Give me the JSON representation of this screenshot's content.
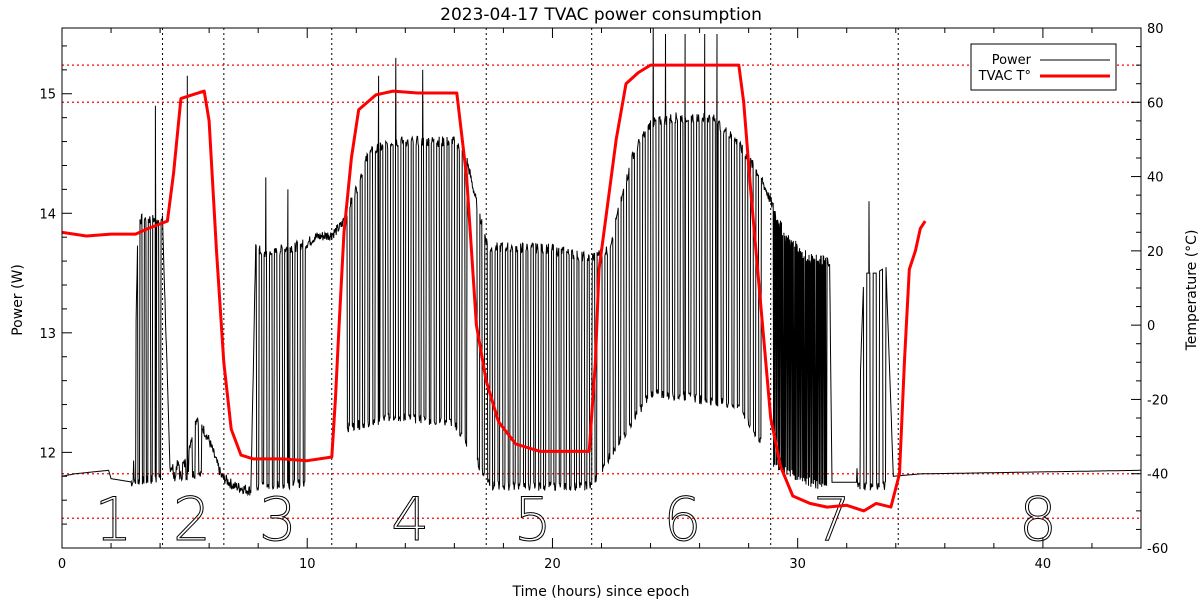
{
  "chart_data": {
    "type": "line",
    "title": "2023-04-17 TVAC power consumption",
    "xlabel": "Time (hours) since epoch",
    "ylabel": "Power (W)",
    "y2label": "Temperature (°C)",
    "xlim": [
      0,
      44
    ],
    "ylim": [
      11.2,
      15.55
    ],
    "y2lim": [
      -60,
      80
    ],
    "x_ticks": [
      0,
      10,
      20,
      30,
      40
    ],
    "y_ticks": [
      12,
      13,
      14,
      15
    ],
    "y2_ticks": [
      -60,
      -40,
      -20,
      0,
      20,
      40,
      60,
      80
    ],
    "legend": {
      "position": "top-right",
      "entries": [
        {
          "label": "Power",
          "color": "#000000"
        },
        {
          "label": "TVAC T°",
          "color": "#ff0000"
        }
      ]
    },
    "phase_boundaries": [
      4.1,
      6.6,
      11.0,
      17.3,
      21.6,
      28.9,
      34.1
    ],
    "phase_labels": [
      {
        "label": "1",
        "x": 2.1
      },
      {
        "label": "2",
        "x": 5.3
      },
      {
        "label": "3",
        "x": 8.8
      },
      {
        "label": "4",
        "x": 14.2
      },
      {
        "label": "5",
        "x": 19.2
      },
      {
        "label": "6",
        "x": 25.3
      },
      {
        "label": "7",
        "x": 31.4
      },
      {
        "label": "8",
        "x": 39.8
      }
    ],
    "temperature_reference_lines": [
      70,
      60,
      -40,
      -52
    ],
    "series": [
      {
        "name": "Power",
        "axis": "left",
        "color": "#000000",
        "baseline": [
          [
            0,
            11.8
          ],
          [
            0.5,
            11.82
          ],
          [
            1.9,
            11.85
          ],
          [
            2.0,
            11.78
          ],
          [
            2.9,
            11.75
          ],
          [
            3.1,
            13.95
          ],
          [
            4.1,
            13.95
          ],
          [
            4.4,
            11.88
          ],
          [
            5.0,
            11.9
          ],
          [
            5.5,
            12.3
          ],
          [
            6.0,
            12.1
          ],
          [
            6.5,
            11.8
          ],
          [
            7.0,
            11.72
          ],
          [
            7.7,
            11.68
          ],
          [
            7.9,
            13.7
          ],
          [
            8.5,
            13.65
          ],
          [
            9.0,
            13.7
          ],
          [
            9.5,
            13.72
          ],
          [
            10.0,
            13.75
          ],
          [
            10.3,
            13.8
          ],
          [
            11.0,
            13.82
          ],
          [
            11.4,
            13.9
          ],
          [
            12.0,
            14.2
          ],
          [
            12.5,
            14.5
          ],
          [
            13.5,
            14.6
          ],
          [
            14.5,
            14.6
          ],
          [
            16.0,
            14.6
          ],
          [
            16.5,
            14.45
          ],
          [
            17.0,
            14.0
          ],
          [
            17.4,
            13.7
          ],
          [
            18.0,
            13.72
          ],
          [
            20.0,
            13.7
          ],
          [
            21.5,
            13.62
          ],
          [
            22.3,
            13.7
          ],
          [
            22.8,
            14.1
          ],
          [
            23.3,
            14.5
          ],
          [
            24.0,
            14.75
          ],
          [
            25.0,
            14.8
          ],
          [
            26.5,
            14.8
          ],
          [
            27.5,
            14.6
          ],
          [
            28.5,
            14.3
          ],
          [
            29.5,
            13.8
          ],
          [
            30.5,
            13.62
          ],
          [
            31.3,
            13.6
          ],
          [
            31.4,
            11.75
          ],
          [
            32.4,
            11.75
          ],
          [
            32.7,
            13.5
          ],
          [
            33.2,
            13.5
          ],
          [
            33.6,
            13.55
          ],
          [
            33.9,
            11.8
          ],
          [
            35.0,
            11.82
          ],
          [
            44.0,
            11.85
          ]
        ],
        "high_level": [
          [
            2.8,
            13.8
          ],
          [
            5.4,
            14.9
          ],
          [
            8.0,
            13.8
          ],
          [
            10.5,
            13.85
          ],
          [
            11.5,
            14.1
          ],
          [
            13.5,
            14.65
          ],
          [
            16.0,
            14.6
          ],
          [
            17.5,
            13.8
          ],
          [
            21.6,
            13.7
          ],
          [
            24.0,
            14.9
          ],
          [
            27.6,
            14.8
          ],
          [
            29.0,
            14.1
          ],
          [
            30.8,
            13.6
          ],
          [
            31.2,
            13.55
          ]
        ],
        "low_level": [
          [
            2.8,
            11.75
          ],
          [
            5.4,
            11.82
          ],
          [
            8.0,
            11.72
          ],
          [
            10.5,
            11.75
          ],
          [
            11.5,
            12.2
          ],
          [
            13.5,
            12.3
          ],
          [
            16.0,
            12.25
          ],
          [
            17.5,
            11.72
          ],
          [
            21.6,
            11.72
          ],
          [
            24.0,
            12.5
          ],
          [
            27.6,
            12.4
          ],
          [
            29.0,
            11.9
          ],
          [
            30.8,
            11.72
          ],
          [
            31.2,
            11.72
          ]
        ],
        "dropouts": [
          {
            "start": 2.9,
            "end": 4.1,
            "count": 7
          },
          {
            "start": 4.5,
            "end": 5.8,
            "count": 5
          },
          {
            "start": 7.9,
            "end": 10.0,
            "count": 10
          },
          {
            "start": 11.6,
            "end": 16.6,
            "count": 24
          },
          {
            "start": 16.9,
            "end": 21.9,
            "count": 24
          },
          {
            "start": 22.0,
            "end": 28.6,
            "count": 30
          },
          {
            "start": 29.0,
            "end": 31.2,
            "count": 45
          },
          {
            "start": 32.4,
            "end": 33.7,
            "count": 5
          }
        ],
        "spikes": [
          [
            3.8,
            14.9
          ],
          [
            5.1,
            15.15
          ],
          [
            8.3,
            14.3
          ],
          [
            9.2,
            14.2
          ],
          [
            12.9,
            15.15
          ],
          [
            13.6,
            15.3
          ],
          [
            14.7,
            15.2
          ],
          [
            24.1,
            15.6
          ],
          [
            24.6,
            15.5
          ],
          [
            25.4,
            15.5
          ],
          [
            26.2,
            15.5
          ],
          [
            26.7,
            15.5
          ],
          [
            32.9,
            14.1
          ]
        ]
      },
      {
        "name": "TVAC T°",
        "axis": "right",
        "color": "#ff0000",
        "points": [
          [
            0,
            25
          ],
          [
            1,
            24
          ],
          [
            2,
            24.5
          ],
          [
            3,
            24.5
          ],
          [
            3.5,
            26
          ],
          [
            4.3,
            28
          ],
          [
            4.55,
            41
          ],
          [
            4.85,
            61
          ],
          [
            5.3,
            62
          ],
          [
            5.8,
            63
          ],
          [
            6.0,
            55
          ],
          [
            6.3,
            20
          ],
          [
            6.6,
            -10
          ],
          [
            6.9,
            -28
          ],
          [
            7.3,
            -35
          ],
          [
            7.8,
            -36
          ],
          [
            9.0,
            -36
          ],
          [
            10.0,
            -36.5
          ],
          [
            11.0,
            -35.5
          ],
          [
            11.15,
            -20
          ],
          [
            11.3,
            0
          ],
          [
            11.5,
            25
          ],
          [
            11.8,
            45
          ],
          [
            12.1,
            58
          ],
          [
            12.8,
            62
          ],
          [
            13.5,
            63
          ],
          [
            14.5,
            62.5
          ],
          [
            15.5,
            62.5
          ],
          [
            16.1,
            62.5
          ],
          [
            16.5,
            40
          ],
          [
            16.9,
            0
          ],
          [
            17.3,
            -15
          ],
          [
            17.8,
            -26
          ],
          [
            18.5,
            -32
          ],
          [
            19.5,
            -34
          ],
          [
            20.5,
            -34
          ],
          [
            21.5,
            -34
          ],
          [
            21.75,
            -10
          ],
          [
            21.9,
            15
          ],
          [
            22.2,
            30
          ],
          [
            22.6,
            50
          ],
          [
            23.0,
            65
          ],
          [
            23.5,
            68
          ],
          [
            24.0,
            70
          ],
          [
            25.0,
            70
          ],
          [
            26.5,
            70
          ],
          [
            27.6,
            70
          ],
          [
            27.8,
            60
          ],
          [
            28.1,
            35
          ],
          [
            28.5,
            5
          ],
          [
            28.9,
            -25
          ],
          [
            29.3,
            -38
          ],
          [
            29.8,
            -46
          ],
          [
            30.5,
            -48
          ],
          [
            31.2,
            -49
          ],
          [
            32.0,
            -48.5
          ],
          [
            32.7,
            -50
          ],
          [
            33.2,
            -48
          ],
          [
            33.8,
            -49
          ],
          [
            34.15,
            -40
          ],
          [
            34.35,
            -10
          ],
          [
            34.55,
            15
          ],
          [
            34.8,
            20
          ],
          [
            35.0,
            26
          ],
          [
            35.2,
            28
          ]
        ]
      }
    ]
  }
}
